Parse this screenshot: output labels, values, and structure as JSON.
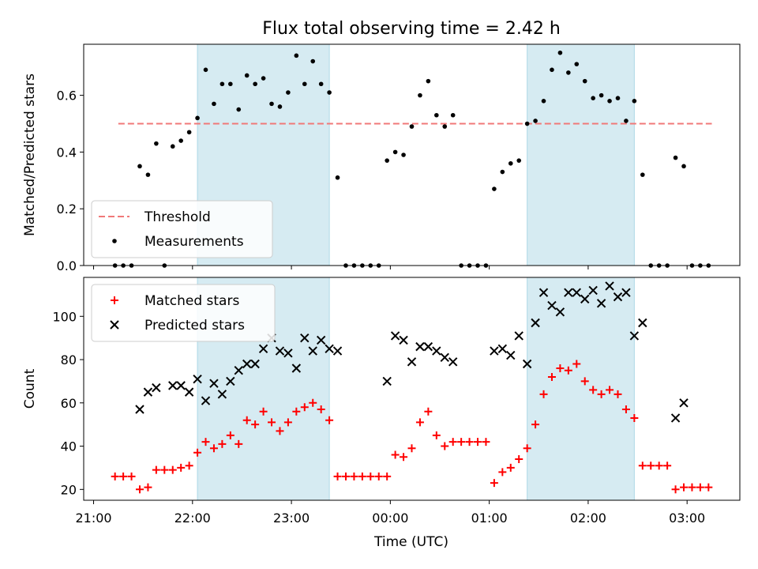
{
  "chart_data": {
    "title": "Flux total observing time = 2.42 h",
    "xlabel": "Time (UTC)",
    "x_ticks": [
      "21:00",
      "22:00",
      "23:00",
      "00:00",
      "01:00",
      "02:00",
      "03:00"
    ],
    "x_range": [
      "20:54",
      "03:32"
    ],
    "shaded_intervals": [
      [
        "22:03",
        "23:23"
      ],
      [
        "01:23",
        "02:28"
      ]
    ],
    "panels": [
      {
        "type": "scatter",
        "ylabel": "Matched/Predicted stars",
        "ylim": [
          0,
          0.78
        ],
        "yticks": [
          "0.0",
          "0.2",
          "0.4",
          "0.6"
        ],
        "legend_position": "lower-left",
        "threshold": {
          "name": "Threshold",
          "value": 0.5,
          "x_range": [
            "21:15",
            "03:15"
          ],
          "color": "#f07878"
        },
        "series": [
          {
            "name": "Measurements",
            "color": "#000000",
            "marker": "dot",
            "points": [
              [
                "21:13",
                0.0
              ],
              [
                "21:18",
                0.0
              ],
              [
                "21:23",
                0.0
              ],
              [
                "21:28",
                0.35
              ],
              [
                "21:33",
                0.32
              ],
              [
                "21:38",
                0.43
              ],
              [
                "21:43",
                0.0
              ],
              [
                "21:48",
                0.42
              ],
              [
                "21:53",
                0.44
              ],
              [
                "21:58",
                0.47
              ],
              [
                "22:03",
                0.52
              ],
              [
                "22:08",
                0.69
              ],
              [
                "22:13",
                0.57
              ],
              [
                "22:18",
                0.64
              ],
              [
                "22:23",
                0.64
              ],
              [
                "22:28",
                0.55
              ],
              [
                "22:33",
                0.67
              ],
              [
                "22:38",
                0.64
              ],
              [
                "22:43",
                0.66
              ],
              [
                "22:48",
                0.57
              ],
              [
                "22:53",
                0.56
              ],
              [
                "22:58",
                0.61
              ],
              [
                "23:03",
                0.74
              ],
              [
                "23:08",
                0.64
              ],
              [
                "23:13",
                0.72
              ],
              [
                "23:18",
                0.64
              ],
              [
                "23:23",
                0.61
              ],
              [
                "23:28",
                0.31
              ],
              [
                "23:33",
                0.0
              ],
              [
                "23:38",
                0.0
              ],
              [
                "23:43",
                0.0
              ],
              [
                "23:48",
                0.0
              ],
              [
                "23:53",
                0.0
              ],
              [
                "23:58",
                0.37
              ],
              [
                "00:03",
                0.4
              ],
              [
                "00:08",
                0.39
              ],
              [
                "00:13",
                0.49
              ],
              [
                "00:18",
                0.6
              ],
              [
                "00:23",
                0.65
              ],
              [
                "00:28",
                0.53
              ],
              [
                "00:33",
                0.49
              ],
              [
                "00:38",
                0.53
              ],
              [
                "00:43",
                0.0
              ],
              [
                "00:48",
                0.0
              ],
              [
                "00:53",
                0.0
              ],
              [
                "00:58",
                0.0
              ],
              [
                "01:03",
                0.27
              ],
              [
                "01:08",
                0.33
              ],
              [
                "01:13",
                0.36
              ],
              [
                "01:18",
                0.37
              ],
              [
                "01:23",
                0.5
              ],
              [
                "01:28",
                0.51
              ],
              [
                "01:33",
                0.58
              ],
              [
                "01:38",
                0.69
              ],
              [
                "01:43",
                0.75
              ],
              [
                "01:48",
                0.68
              ],
              [
                "01:53",
                0.71
              ],
              [
                "01:58",
                0.65
              ],
              [
                "02:03",
                0.59
              ],
              [
                "02:08",
                0.6
              ],
              [
                "02:13",
                0.58
              ],
              [
                "02:18",
                0.59
              ],
              [
                "02:23",
                0.51
              ],
              [
                "02:28",
                0.58
              ],
              [
                "02:33",
                0.32
              ],
              [
                "02:38",
                0.0
              ],
              [
                "02:43",
                0.0
              ],
              [
                "02:48",
                0.0
              ],
              [
                "02:53",
                0.38
              ],
              [
                "02:58",
                0.35
              ],
              [
                "03:03",
                0.0
              ],
              [
                "03:08",
                0.0
              ],
              [
                "03:13",
                0.0
              ]
            ]
          }
        ]
      },
      {
        "type": "scatter",
        "ylabel": "Count",
        "ylim": [
          15,
          118
        ],
        "yticks": [
          "20",
          "40",
          "60",
          "80",
          "100"
        ],
        "legend_position": "upper-left",
        "series": [
          {
            "name": "Matched stars",
            "color": "#ff0000",
            "marker": "plus",
            "points": [
              [
                "21:13",
                26
              ],
              [
                "21:18",
                26
              ],
              [
                "21:23",
                26
              ],
              [
                "21:28",
                20
              ],
              [
                "21:33",
                21
              ],
              [
                "21:38",
                29
              ],
              [
                "21:43",
                29
              ],
              [
                "21:48",
                29
              ],
              [
                "21:53",
                30
              ],
              [
                "21:58",
                31
              ],
              [
                "22:03",
                37
              ],
              [
                "22:08",
                42
              ],
              [
                "22:13",
                39
              ],
              [
                "22:18",
                41
              ],
              [
                "22:23",
                45
              ],
              [
                "22:28",
                41
              ],
              [
                "22:33",
                52
              ],
              [
                "22:38",
                50
              ],
              [
                "22:43",
                56
              ],
              [
                "22:48",
                51
              ],
              [
                "22:53",
                47
              ],
              [
                "22:58",
                51
              ],
              [
                "23:03",
                56
              ],
              [
                "23:08",
                58
              ],
              [
                "23:13",
                60
              ],
              [
                "23:18",
                57
              ],
              [
                "23:23",
                52
              ],
              [
                "23:28",
                26
              ],
              [
                "23:33",
                26
              ],
              [
                "23:38",
                26
              ],
              [
                "23:43",
                26
              ],
              [
                "23:48",
                26
              ],
              [
                "23:53",
                26
              ],
              [
                "23:58",
                26
              ],
              [
                "00:03",
                36
              ],
              [
                "00:08",
                35
              ],
              [
                "00:13",
                39
              ],
              [
                "00:18",
                51
              ],
              [
                "00:23",
                56
              ],
              [
                "00:28",
                45
              ],
              [
                "00:33",
                40
              ],
              [
                "00:38",
                42
              ],
              [
                "00:43",
                42
              ],
              [
                "00:48",
                42
              ],
              [
                "00:53",
                42
              ],
              [
                "00:58",
                42
              ],
              [
                "01:03",
                23
              ],
              [
                "01:08",
                28
              ],
              [
                "01:13",
                30
              ],
              [
                "01:18",
                34
              ],
              [
                "01:23",
                39
              ],
              [
                "01:28",
                50
              ],
              [
                "01:33",
                64
              ],
              [
                "01:38",
                72
              ],
              [
                "01:43",
                76
              ],
              [
                "01:48",
                75
              ],
              [
                "01:53",
                78
              ],
              [
                "01:58",
                70
              ],
              [
                "02:03",
                66
              ],
              [
                "02:08",
                64
              ],
              [
                "02:13",
                66
              ],
              [
                "02:18",
                64
              ],
              [
                "02:23",
                57
              ],
              [
                "02:28",
                53
              ],
              [
                "02:33",
                31
              ],
              [
                "02:38",
                31
              ],
              [
                "02:43",
                31
              ],
              [
                "02:48",
                31
              ],
              [
                "02:53",
                20
              ],
              [
                "02:58",
                21
              ],
              [
                "03:03",
                21
              ],
              [
                "03:08",
                21
              ],
              [
                "03:13",
                21
              ]
            ]
          },
          {
            "name": "Predicted stars",
            "color": "#000000",
            "marker": "x",
            "points": [
              [
                "21:28",
                57
              ],
              [
                "21:33",
                65
              ],
              [
                "21:38",
                67
              ],
              [
                "21:48",
                68
              ],
              [
                "21:53",
                68
              ],
              [
                "21:58",
                65
              ],
              [
                "22:03",
                71
              ],
              [
                "22:08",
                61
              ],
              [
                "22:13",
                69
              ],
              [
                "22:18",
                64
              ],
              [
                "22:23",
                70
              ],
              [
                "22:28",
                75
              ],
              [
                "22:33",
                78
              ],
              [
                "22:38",
                78
              ],
              [
                "22:43",
                85
              ],
              [
                "22:48",
                90
              ],
              [
                "22:53",
                84
              ],
              [
                "22:58",
                83
              ],
              [
                "23:03",
                76
              ],
              [
                "23:08",
                90
              ],
              [
                "23:13",
                84
              ],
              [
                "23:18",
                89
              ],
              [
                "23:23",
                85
              ],
              [
                "23:28",
                84
              ],
              [
                "23:58",
                70
              ],
              [
                "00:03",
                91
              ],
              [
                "00:08",
                89
              ],
              [
                "00:13",
                79
              ],
              [
                "00:18",
                86
              ],
              [
                "00:23",
                86
              ],
              [
                "00:28",
                84
              ],
              [
                "00:33",
                81
              ],
              [
                "00:38",
                79
              ],
              [
                "01:03",
                84
              ],
              [
                "01:08",
                85
              ],
              [
                "01:13",
                82
              ],
              [
                "01:18",
                91
              ],
              [
                "01:23",
                78
              ],
              [
                "01:28",
                97
              ],
              [
                "01:33",
                111
              ],
              [
                "01:38",
                105
              ],
              [
                "01:43",
                102
              ],
              [
                "01:48",
                111
              ],
              [
                "01:53",
                111
              ],
              [
                "01:58",
                108
              ],
              [
                "02:03",
                112
              ],
              [
                "02:08",
                106
              ],
              [
                "02:13",
                114
              ],
              [
                "02:18",
                109
              ],
              [
                "02:23",
                111
              ],
              [
                "02:28",
                91
              ],
              [
                "02:33",
                97
              ],
              [
                "02:53",
                53
              ],
              [
                "02:58",
                60
              ]
            ]
          }
        ]
      }
    ]
  }
}
